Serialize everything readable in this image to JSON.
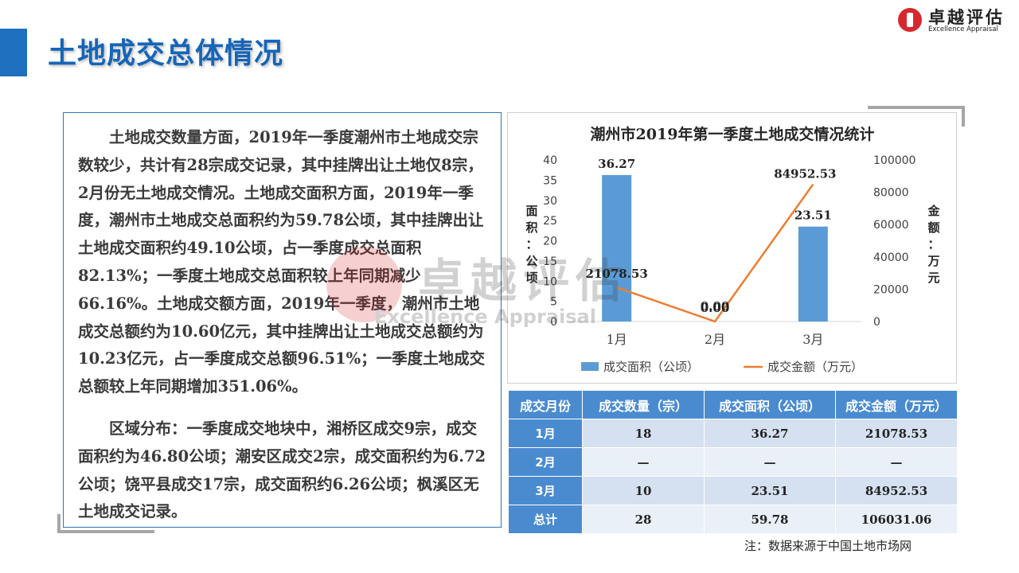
{
  "page": {
    "title": "土地成交总体情况",
    "logo_cn": "卓越评估",
    "logo_en": "Excellence Appraisal",
    "watermark_cn": "卓越评估",
    "watermark_en": "Excellence Appraisal",
    "footnote": "注：数据来源于中国土地市场网"
  },
  "text": {
    "para1": "土地成交数量方面，2019年一季度潮州市土地成交宗数较少，共计有28宗成交记录，其中挂牌出让土地仅8宗，2月份无土地成交情况。土地成交面积方面，2019年一季度，潮州市土地成交总面积约为59.78公顷，其中挂牌出让土地成交面积约49.10公顷，占一季度成交总面积82.13%；一季度土地成交总面积较上年同期减少66.16%。土地成交额方面，2019年一季度，潮州市土地成交总额约为10.60亿元，其中挂牌出让土地成交总额约为10.23亿元，占一季度成交总额96.51%；一季度土地成交总额较上年同期增加351.06%。",
    "para2": "区域分布：一季度成交地块中，湘桥区成交9宗，成交面积约为46.80公顷；潮安区成交2宗，成交面积约为6.72公顷；饶平县成交17宗，成交面积约6.26公顷；枫溪区无土地成交记录。"
  },
  "chart_data": {
    "type": "bar",
    "title": "潮州市2019年第一季度土地成交情况统计",
    "categories": [
      "1月",
      "2月",
      "3月"
    ],
    "series": [
      {
        "name": "成交面积（公顷）",
        "type": "bar",
        "axis": "left",
        "values": [
          36.27,
          0,
          23.51
        ],
        "labels": [
          "36.27",
          "",
          "23.51"
        ],
        "color": "#5b9bd5"
      },
      {
        "name": "成交金额（万元）",
        "type": "line",
        "axis": "right",
        "values": [
          21078.53,
          0,
          84952.53
        ],
        "labels": [
          "21078.53",
          "0.00",
          "84952.53"
        ],
        "color": "#ed7d31"
      }
    ],
    "extra_label": "0.00",
    "ylabel": "面积：公顷",
    "y2label": "金额：万元",
    "ylim": [
      0,
      40
    ],
    "y2lim": [
      0,
      100000
    ],
    "yticks": [
      "0",
      "5",
      "10",
      "15",
      "20",
      "25",
      "30",
      "35",
      "40"
    ],
    "y2ticks": [
      "0",
      "20000",
      "40000",
      "60000",
      "80000",
      "100000"
    ],
    "grid": false,
    "legend": "bottom"
  },
  "table": {
    "headers": [
      "成交月份",
      "成交数量（宗）",
      "成交面积（公顷）",
      "成交金额（万元）"
    ],
    "rows": [
      [
        "1月",
        "18",
        "36.27",
        "21078.53"
      ],
      [
        "2月",
        "—",
        "—",
        "—"
      ],
      [
        "3月",
        "10",
        "23.51",
        "84952.53"
      ],
      [
        "总计",
        "28",
        "59.78",
        "106031.06"
      ]
    ]
  },
  "colors": {
    "brand_blue": "#1565b8",
    "bar": "#5b9bd5",
    "line": "#ed7d31",
    "table_header": "#4a8bd0",
    "logo_red": "#d7282f"
  }
}
